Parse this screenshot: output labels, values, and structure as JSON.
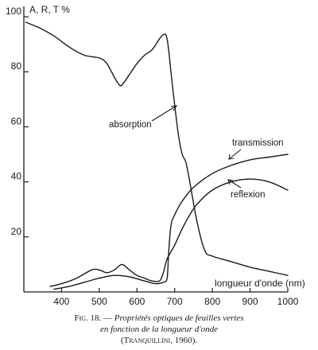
{
  "chart_data": {
    "type": "line",
    "title": "",
    "ylabel": "A, R, T %",
    "xlabel": "longueur d'onde (nm)",
    "xlim": [
      300,
      1000
    ],
    "ylim": [
      0,
      100
    ],
    "x_ticks": [
      "400",
      "500",
      "600",
      "700",
      "800",
      "900",
      "1000"
    ],
    "y_ticks": [
      "20",
      "40",
      "60",
      "80",
      "100"
    ],
    "grid": false,
    "series": [
      {
        "name": "absorption",
        "x": [
          305,
          340,
          380,
          420,
          460,
          500,
          520,
          540,
          555,
          565,
          580,
          600,
          620,
          640,
          660,
          670,
          678,
          684,
          690,
          700,
          710,
          720,
          730,
          740,
          760,
          780,
          800,
          850,
          900,
          950,
          1000
        ],
        "y": [
          98,
          96,
          93,
          89,
          86,
          85,
          83,
          78,
          75,
          76,
          79,
          83,
          86,
          88,
          92,
          93.5,
          93,
          88,
          80,
          68,
          57,
          50,
          47,
          40,
          25,
          15,
          13,
          11,
          9,
          7.5,
          6
        ]
      },
      {
        "name": "transmission",
        "x": [
          380,
          420,
          460,
          500,
          540,
          580,
          620,
          650,
          670,
          680,
          684,
          690,
          700,
          720,
          750,
          800,
          850,
          900,
          950,
          1000
        ],
        "y": [
          1,
          2,
          3.5,
          5,
          6,
          5.5,
          4,
          3,
          3.5,
          5,
          14,
          24,
          28,
          33,
          38,
          43,
          46,
          48,
          49,
          50
        ]
      },
      {
        "name": "reflexion",
        "x": [
          370,
          400,
          440,
          480,
          500,
          520,
          540,
          560,
          580,
          600,
          620,
          640,
          660,
          670,
          680,
          700,
          720,
          740,
          760,
          800,
          850,
          900,
          950,
          1000
        ],
        "y": [
          2,
          3,
          5,
          8,
          8,
          7,
          8,
          10,
          8,
          6,
          5,
          4,
          4,
          7,
          12,
          17,
          23,
          28,
          32,
          37,
          40,
          41,
          40,
          37
        ]
      }
    ]
  },
  "caption": {
    "fig_label": "Fig. 18.",
    "dash": " — ",
    "line1": "Propriétés optiques de feuilles vertes",
    "line2": "en fonction de la longueur d'onde",
    "credit": "(Tranquillini, 1960)."
  }
}
